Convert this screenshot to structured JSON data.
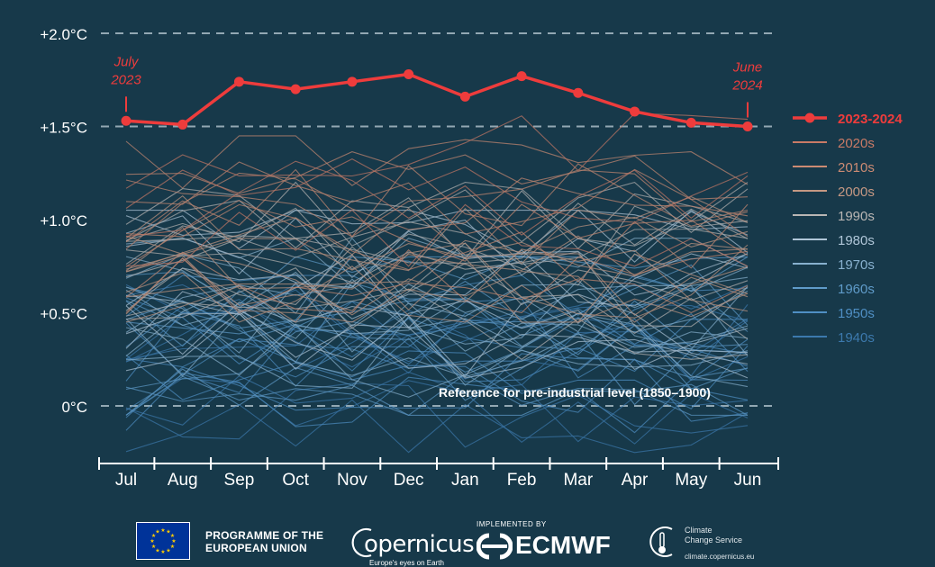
{
  "chart_data": {
    "type": "line",
    "xlabel": "",
    "ylabel": "",
    "categories": [
      "Jul",
      "Aug",
      "Sep",
      "Oct",
      "Nov",
      "Dec",
      "Jan",
      "Feb",
      "Mar",
      "Apr",
      "May",
      "Jun"
    ],
    "ylim": [
      -0.3,
      2.05
    ],
    "y_ticks": [
      0,
      0.5,
      1.0,
      1.5,
      2.0
    ],
    "y_tick_labels": [
      "0°C",
      "+0.5°C",
      "+1.0°C",
      "+1.5°C",
      "+2.0°C"
    ],
    "grid": "dashed at 0, 1.5 and 2.0",
    "highlight_series": {
      "name": "2023-2024",
      "color": "#ee3c3c",
      "values": [
        1.53,
        1.51,
        1.74,
        1.7,
        1.74,
        1.78,
        1.66,
        1.77,
        1.68,
        1.58,
        1.52,
        1.5
      ]
    },
    "decade_series": [
      {
        "name": "2020s",
        "color": "#c97a66",
        "years": 4,
        "min": 0.8,
        "max": 1.62
      },
      {
        "name": "2010s",
        "color": "#cc8b73",
        "years": 10,
        "min": 0.55,
        "max": 1.4
      },
      {
        "name": "2000s",
        "color": "#c59883",
        "years": 10,
        "min": 0.5,
        "max": 1.25
      },
      {
        "name": "1990s",
        "color": "#b9b6b4",
        "years": 10,
        "min": 0.3,
        "max": 1.15
      },
      {
        "name": "1980s",
        "color": "#b0c6d8",
        "years": 10,
        "min": 0.2,
        "max": 1.0
      },
      {
        "name": "1970s",
        "color": "#88b1cf",
        "years": 10,
        "min": 0.05,
        "max": 0.85
      },
      {
        "name": "1960s",
        "color": "#5f9bc9",
        "years": 10,
        "min": 0.0,
        "max": 0.75
      },
      {
        "name": "1950s",
        "color": "#4f8fc4",
        "years": 10,
        "min": -0.1,
        "max": 0.65
      },
      {
        "name": "1940s",
        "color": "#3c79ad",
        "years": 10,
        "min": -0.2,
        "max": 0.6
      }
    ],
    "annotations": [
      {
        "text_line1": "July",
        "text_line2": "2023",
        "month": "Jul"
      },
      {
        "text_line1": "June",
        "text_line2": "2024",
        "month": "Jun"
      },
      {
        "text": "Reference for pre-industrial level (1850–1900)",
        "y": 0
      }
    ],
    "legend": {
      "placement": "right",
      "entries": [
        "2023-2024",
        "2020s",
        "2010s",
        "2000s",
        "1990s",
        "1980s",
        "1970s",
        "1960s",
        "1950s",
        "1940s"
      ]
    }
  },
  "footer": {
    "eu_line1": "PROGRAMME OF THE",
    "eu_line2": "EUROPEAN UNION",
    "copernicus_word": "opernicus",
    "copernicus_sub": "Europe's eyes on Earth",
    "ecmwf_small": "IMPLEMENTED BY",
    "ecmwf_word": "ECMWF",
    "c3s_line1": "Climate",
    "c3s_line2": "Change Service",
    "c3s_url": "climate.copernicus.eu"
  }
}
